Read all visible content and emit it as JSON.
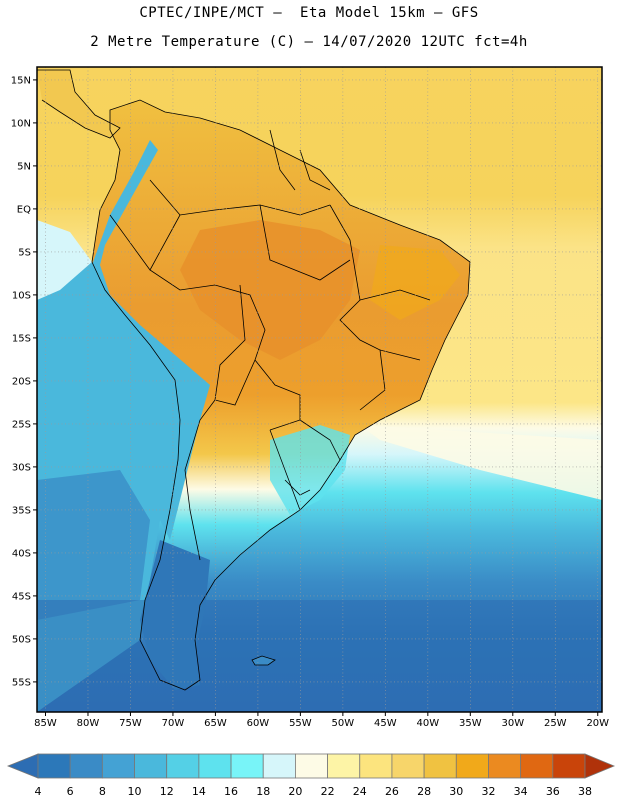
{
  "header": {
    "line1": "CPTEC/INPE/MCT –  Eta Model 15km – GFS",
    "line2": "2 Metre Temperature (C) – 14/07/2020 12UTC fct=4h"
  },
  "map": {
    "lon_labels": [
      "85W",
      "80W",
      "75W",
      "70W",
      "65W",
      "60W",
      "55W",
      "50W",
      "45W",
      "40W",
      "35W",
      "30W",
      "25W",
      "20W"
    ],
    "lat_labels": [
      "15N",
      "10N",
      "5N",
      "EQ",
      "5S",
      "10S",
      "15S",
      "20S",
      "25S",
      "30S",
      "35S",
      "40S",
      "45S",
      "50S",
      "55S"
    ],
    "lon_range": [
      -86,
      -19.5
    ],
    "lat_range": [
      16.5,
      -58.5
    ]
  },
  "colorbar": {
    "ticks": [
      "4",
      "6",
      "8",
      "10",
      "12",
      "14",
      "16",
      "18",
      "20",
      "22",
      "24",
      "26",
      "28",
      "30",
      "32",
      "34",
      "36",
      "38"
    ],
    "colors": [
      "#2d6db3",
      "#2c78b9",
      "#3a8bc6",
      "#44a2d4",
      "#4ab8dc",
      "#54d0e6",
      "#5ee2ee",
      "#78f4f8",
      "#d6f6fa",
      "#fdfbe6",
      "#fdf4a6",
      "#fce47e",
      "#f7d56a",
      "#f0c241",
      "#f1a91a",
      "#eb8a20",
      "#e06812",
      "#c9440a",
      "#b0320a"
    ]
  },
  "colors": {
    "ocean_sw": "#2f6fb4",
    "ocean_mid": "#3ea3d3",
    "ocean_teal": "#50c9de",
    "ocean_warm": "#fce47e",
    "land_hot": "#e9962c",
    "land_warm": "#f0c040",
    "andes_cold": "#4ab8dc",
    "border": "#000000"
  }
}
